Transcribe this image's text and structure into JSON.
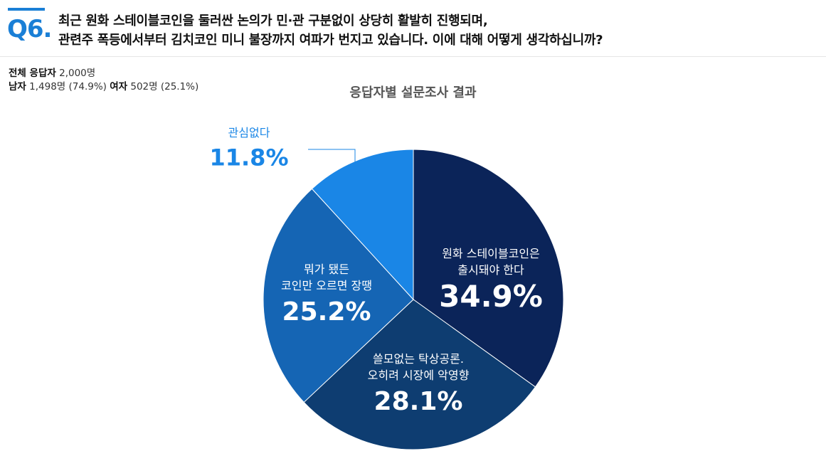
{
  "question": {
    "number": "Q6.",
    "line1": "최근 원화 스테이블코인을 둘러싼 논의가 민·관 구분없이 상당히 활발히 진행되며,",
    "line2": "관련주 폭등에서부터 김치코인 미니 불장까지 여파가 번지고 있습니다. 이에 대해 어떻게 생각하십니까?"
  },
  "respondents": {
    "total_label": "전체 응답자",
    "total_value": "2,000명",
    "male_label": "남자",
    "male_value": "1,498명 (74.9%)",
    "female_label": "여자",
    "female_value": "502명 (25.1%)"
  },
  "chart_data": {
    "type": "pie",
    "title": "응답자별 설문조사 결과",
    "slices": [
      {
        "label_lines": [
          "원화 스테이블코인은",
          "출시돼야 한다"
        ],
        "value": 34.9,
        "display": "34.9%",
        "color": "#0b2459"
      },
      {
        "label_lines": [
          "쓸모없는 탁상공론.",
          "오히려 시장에 악영향"
        ],
        "value": 28.1,
        "display": "28.1%",
        "color": "#0e3d71"
      },
      {
        "label_lines": [
          "뭐가 됐든",
          "코인만 오르면 장땡"
        ],
        "value": 25.2,
        "display": "25.2%",
        "color": "#1565b4"
      },
      {
        "label_lines": [
          "관심없다"
        ],
        "value": 11.8,
        "display": "11.8%",
        "color": "#1a86e6"
      }
    ]
  }
}
